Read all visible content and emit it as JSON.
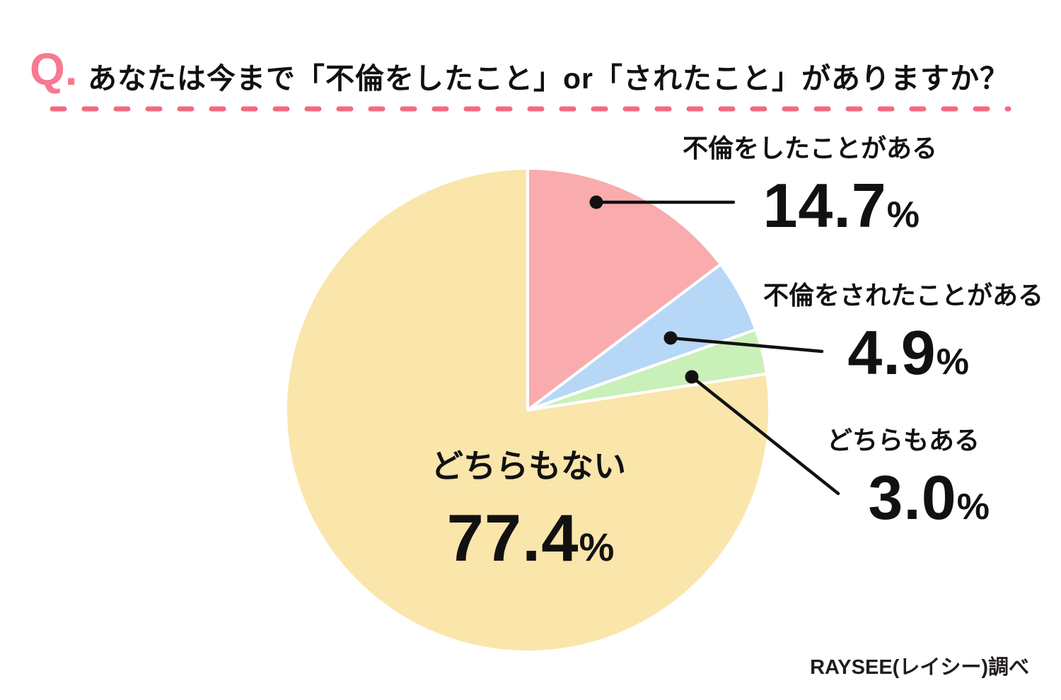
{
  "header": {
    "q_mark": "Q.",
    "title": "あなたは今まで「不倫をしたこと」or「されたこと」がありますか？",
    "accent_color": "#F8798F",
    "dash_color": "#F5697F"
  },
  "chart_data": {
    "type": "pie",
    "title": "あなたは今まで「不倫をしたこと」or「されたこと」がありますか？",
    "start_angle_deg_from_top": 0,
    "direction": "clockwise",
    "legend_position": "callouts",
    "percent_sign": "%",
    "separator_color": "#ffffff",
    "leader_line_color": "#111111",
    "segments": [
      {
        "label": "不倫をしたことがある",
        "value": 14.7,
        "display": "14.7",
        "color": "#F9ABAD"
      },
      {
        "label": "不倫をされたことがある",
        "value": 4.9,
        "display": "4.9",
        "color": "#B7D7F6"
      },
      {
        "label": "どちらもある",
        "value": 3.0,
        "display": "3.0",
        "color": "#C9F0B9"
      },
      {
        "label": "どちらもない",
        "value": 77.4,
        "display": "77.4",
        "color": "#FAE5AB"
      }
    ]
  },
  "footer": {
    "source": "RAYSEE(レイシー)調べ"
  }
}
